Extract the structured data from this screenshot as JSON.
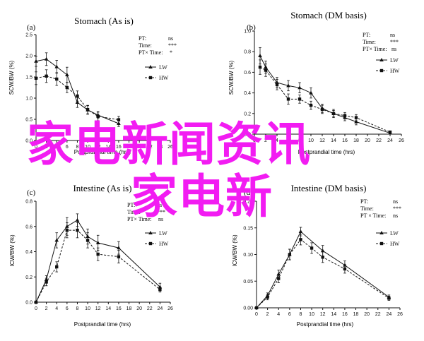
{
  "colors": {
    "axis": "#111111",
    "line": "#111111",
    "watermark": "#f21cf2",
    "background": "#ffffff"
  },
  "watermark": {
    "line1": "家电新闻资讯",
    "line2": "家电新"
  },
  "panels": [
    {
      "panel_label": "(a)",
      "title": "Stomach (As is)",
      "ylabel": "SCW/BW (%)",
      "xlabel": "Postprandial time (hrs)",
      "stats": [
        {
          "name": "PT:",
          "value": "ns"
        },
        {
          "name": "Time:",
          "value": "***"
        },
        {
          "name": "PT× Time:",
          "value": "*"
        }
      ]
    },
    {
      "panel_label": "(b)",
      "title": "Stomach (DM basis)",
      "ylabel": "SCW/BW (%)",
      "xlabel": "Postprandial time (hrs)",
      "stats": [
        {
          "name": "PT:",
          "value": "ns"
        },
        {
          "name": "Time:",
          "value": "***"
        },
        {
          "name": "PT× Time:",
          "value": "ns"
        }
      ]
    },
    {
      "panel_label": "(c)",
      "title": "Intestine (As is)",
      "ylabel": "ICW/BW (%)",
      "xlabel": "Postprandial time (hrs)",
      "stats": [
        {
          "name": "PT:",
          "value": "ns"
        },
        {
          "name": "Time:",
          "value": "***"
        },
        {
          "name": "PT× Time:",
          "value": "ns"
        }
      ]
    },
    {
      "panel_label": "(d)",
      "title": "Intestine (DM basis)",
      "ylabel": "ICW/BW (%)",
      "xlabel": "Postprandial time (hrs)",
      "stats": [
        {
          "name": "PT:",
          "value": "ns"
        },
        {
          "name": "Time:",
          "value": "***"
        },
        {
          "name": "PT × Time:",
          "value": "ns"
        }
      ]
    }
  ],
  "chart_data": [
    {
      "type": "line",
      "title": "Stomach (As is)",
      "xlabel": "Postprandial time (hrs)",
      "ylabel": "SCW/BW (%)",
      "xlim": [
        0,
        26
      ],
      "ylim": [
        0,
        2.5
      ],
      "xticks": [
        0,
        2,
        4,
        6,
        8,
        10,
        12,
        14,
        16,
        18,
        20,
        22,
        24,
        26
      ],
      "yticks": [
        0.0,
        0.5,
        1.0,
        1.5,
        2.0,
        2.5
      ],
      "ytick_decimals": 1,
      "legend_position": "right",
      "series": [
        {
          "name": "LW",
          "style": "solid",
          "marker": "triangle",
          "x": [
            0,
            2,
            4,
            6,
            8,
            10,
            12,
            16
          ],
          "y": [
            1.87,
            1.92,
            1.74,
            1.55,
            0.9,
            0.72,
            0.6,
            0.4
          ],
          "err": [
            0.12,
            0.15,
            0.15,
            0.18,
            0.12,
            0.1,
            0.08,
            0.07
          ]
        },
        {
          "name": "HW",
          "style": "dashed",
          "marker": "square",
          "x": [
            0,
            2,
            4,
            6,
            8,
            10,
            12,
            16
          ],
          "y": [
            1.47,
            1.52,
            1.45,
            1.25,
            1.05,
            0.73,
            0.57,
            0.49
          ],
          "err": [
            0.15,
            0.15,
            0.15,
            0.12,
            0.12,
            0.1,
            0.1,
            0.08
          ]
        }
      ]
    },
    {
      "type": "line",
      "title": "Stomach (DM basis)",
      "xlabel": "Postprandial time (hrs)",
      "ylabel": "SCW/BW (%)",
      "xlim": [
        0,
        26
      ],
      "ylim": [
        0,
        1.0
      ],
      "xticks": [
        0,
        2,
        4,
        6,
        8,
        10,
        12,
        14,
        16,
        18,
        20,
        22,
        24,
        26
      ],
      "yticks": [
        0.0,
        0.2,
        0.4,
        0.6,
        0.8,
        1.0
      ],
      "ytick_decimals": 1,
      "legend_position": "right",
      "series": [
        {
          "name": "LW",
          "style": "solid",
          "marker": "triangle",
          "x": [
            1,
            2,
            4,
            6,
            8,
            10,
            12,
            14,
            16,
            18,
            24
          ],
          "y": [
            0.76,
            0.65,
            0.5,
            0.47,
            0.45,
            0.4,
            0.25,
            0.2,
            0.16,
            0.12,
            0.01
          ],
          "err": [
            0.08,
            0.06,
            0.05,
            0.05,
            0.05,
            0.05,
            0.04,
            0.04,
            0.03,
            0.03,
            0.01
          ]
        },
        {
          "name": "HW",
          "style": "dashed",
          "marker": "square",
          "x": [
            1,
            2,
            4,
            6,
            8,
            10,
            12,
            14,
            16,
            18,
            24
          ],
          "y": [
            0.65,
            0.62,
            0.48,
            0.34,
            0.34,
            0.28,
            0.24,
            0.2,
            0.18,
            0.16,
            0.02
          ],
          "err": [
            0.07,
            0.06,
            0.05,
            0.05,
            0.04,
            0.04,
            0.04,
            0.03,
            0.03,
            0.03,
            0.01
          ]
        }
      ]
    },
    {
      "type": "line",
      "title": "Intestine (As is)",
      "xlabel": "Postprandial time (hrs)",
      "ylabel": "ICW/BW (%)",
      "xlim": [
        0,
        26
      ],
      "ylim": [
        0,
        0.8
      ],
      "xticks": [
        0,
        2,
        4,
        6,
        8,
        10,
        12,
        14,
        16,
        18,
        20,
        22,
        24,
        26
      ],
      "yticks": [
        0.0,
        0.2,
        0.4,
        0.6,
        0.8
      ],
      "ytick_decimals": 1,
      "legend_position": "right",
      "series": [
        {
          "name": "LW",
          "style": "solid",
          "marker": "triangle",
          "x": [
            0,
            2,
            4,
            6,
            8,
            10,
            12,
            16,
            24
          ],
          "y": [
            0.0,
            0.18,
            0.49,
            0.6,
            0.65,
            0.52,
            0.47,
            0.43,
            0.12
          ],
          "err": [
            0.0,
            0.03,
            0.06,
            0.07,
            0.05,
            0.06,
            0.06,
            0.05,
            0.03
          ]
        },
        {
          "name": "HW",
          "style": "dashed",
          "marker": "square",
          "x": [
            0,
            2,
            4,
            6,
            8,
            10,
            12,
            16,
            24
          ],
          "y": [
            0.0,
            0.16,
            0.28,
            0.57,
            0.57,
            0.49,
            0.38,
            0.36,
            0.1
          ],
          "err": [
            0.0,
            0.03,
            0.04,
            0.06,
            0.06,
            0.06,
            0.05,
            0.05,
            0.02
          ]
        }
      ]
    },
    {
      "type": "line",
      "title": "Intestine (DM basis)",
      "xlabel": "Postprandial time (hrs)",
      "ylabel": "ICW/BW (%)",
      "xlim": [
        0,
        26
      ],
      "ylim": [
        0,
        0.2
      ],
      "xticks": [
        0,
        2,
        4,
        6,
        8,
        10,
        12,
        14,
        16,
        18,
        20,
        22,
        24,
        26
      ],
      "yticks": [
        0.0,
        0.05,
        0.1,
        0.15,
        0.2
      ],
      "ytick_decimals": 2,
      "legend_position": "right",
      "series": [
        {
          "name": "LW",
          "style": "solid",
          "marker": "triangle",
          "x": [
            0,
            2,
            4,
            6,
            8,
            12,
            16,
            24
          ],
          "y": [
            0.0,
            0.023,
            0.063,
            0.1,
            0.143,
            0.107,
            0.08,
            0.02
          ],
          "err": [
            0.0,
            0.005,
            0.008,
            0.01,
            0.008,
            0.01,
            0.008,
            0.004
          ]
        },
        {
          "name": "HW",
          "style": "dashed",
          "marker": "square",
          "x": [
            0,
            2,
            4,
            6,
            8,
            10,
            12,
            16,
            24
          ],
          "y": [
            0.0,
            0.02,
            0.055,
            0.1,
            0.128,
            0.112,
            0.095,
            0.073,
            0.018
          ],
          "err": [
            0.0,
            0.005,
            0.008,
            0.01,
            0.01,
            0.01,
            0.01,
            0.008,
            0.004
          ]
        }
      ]
    }
  ]
}
